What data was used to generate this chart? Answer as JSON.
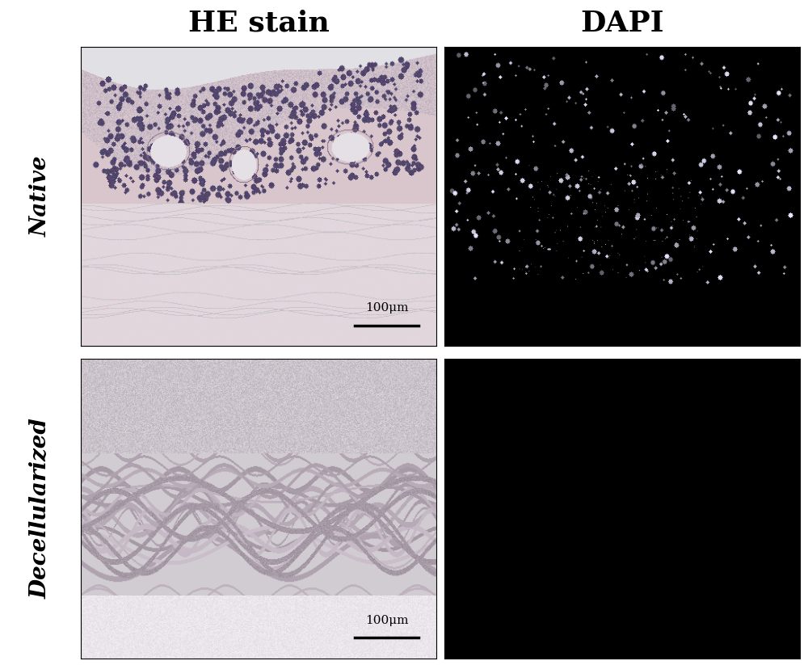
{
  "title_he": "HE stain",
  "title_dapi": "DAPI",
  "row_label_1": "Native",
  "row_label_2": "Decellularized",
  "scale_bar_text": "100μm",
  "bg_color": "#ffffff",
  "fig_width": 10.0,
  "fig_height": 8.23,
  "title_fontsize": 26,
  "row_label_fontsize": 20,
  "scale_bar_fontsize": 11
}
